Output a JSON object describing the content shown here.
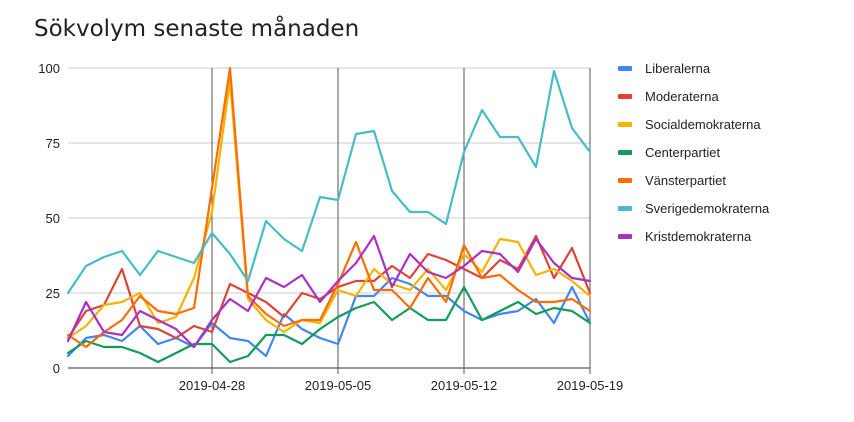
{
  "chart_data": {
    "type": "line",
    "title": "Sökvolym senaste månaden",
    "xlabel": "",
    "ylabel": "",
    "ylim": [
      0,
      100
    ],
    "yticks": [
      0,
      25,
      50,
      75,
      100
    ],
    "x": [
      "2019-04-20",
      "2019-04-21",
      "2019-04-22",
      "2019-04-23",
      "2019-04-24",
      "2019-04-25",
      "2019-04-26",
      "2019-04-27",
      "2019-04-28",
      "2019-04-29",
      "2019-04-30",
      "2019-05-01",
      "2019-05-02",
      "2019-05-03",
      "2019-05-04",
      "2019-05-05",
      "2019-05-06",
      "2019-05-07",
      "2019-05-08",
      "2019-05-09",
      "2019-05-10",
      "2019-05-11",
      "2019-05-12",
      "2019-05-13",
      "2019-05-14",
      "2019-05-15",
      "2019-05-16",
      "2019-05-17",
      "2019-05-18",
      "2019-05-19"
    ],
    "xticks": [
      "2019-04-28",
      "2019-05-05",
      "2019-05-12",
      "2019-05-19"
    ],
    "grid": true,
    "legend_position": "right",
    "series": [
      {
        "name": "Liberalerna",
        "color": "#4285F4",
        "values": [
          4,
          10,
          11,
          9,
          14,
          8,
          10,
          7,
          15,
          10,
          9,
          4,
          18,
          13,
          10,
          8,
          24,
          24,
          30,
          28,
          24,
          24,
          19,
          16,
          18,
          19,
          23,
          15,
          27,
          15
        ]
      },
      {
        "name": "Moderaterna",
        "color": "#DB4437",
        "values": [
          10,
          19,
          21,
          33,
          14,
          13,
          10,
          14,
          12,
          28,
          25,
          22,
          17,
          25,
          23,
          27,
          29,
          29,
          34,
          30,
          38,
          36,
          33,
          30,
          36,
          33,
          44,
          30,
          40,
          25
        ]
      },
      {
        "name": "Socialdemokraterna",
        "color": "#F4B400",
        "values": [
          10,
          14,
          21,
          22,
          25,
          15,
          17,
          30,
          52,
          96,
          23,
          16,
          12,
          16,
          15,
          26,
          24,
          33,
          28,
          26,
          33,
          26,
          38,
          32,
          43,
          42,
          31,
          33,
          29,
          24
        ]
      },
      {
        "name": "Centerpartiet",
        "color": "#0F9D58",
        "values": [
          5,
          9,
          7,
          7,
          5,
          2,
          5,
          8,
          8,
          2,
          4,
          11,
          11,
          8,
          13,
          17,
          20,
          22,
          16,
          20,
          16,
          16,
          27,
          16,
          19,
          22,
          18,
          20,
          19,
          15
        ]
      },
      {
        "name": "Vänsterpartiet",
        "color": "#FF6D00",
        "values": [
          11,
          7,
          12,
          16,
          24,
          19,
          18,
          20,
          60,
          100,
          24,
          18,
          14,
          16,
          16,
          28,
          42,
          26,
          26,
          20,
          30,
          22,
          41,
          30,
          31,
          26,
          22,
          22,
          23,
          19
        ]
      },
      {
        "name": "Sverigedemokraterna",
        "color": "#46BDC6",
        "values": [
          25,
          34,
          37,
          39,
          31,
          39,
          37,
          35,
          45,
          38,
          29,
          49,
          43,
          39,
          57,
          56,
          78,
          79,
          59,
          52,
          52,
          48,
          72,
          86,
          77,
          77,
          67,
          99,
          80,
          72
        ]
      },
      {
        "name": "Kristdemokraterna",
        "color": "#AB30C4",
        "values": [
          9,
          22,
          12,
          11,
          19,
          16,
          13,
          7,
          16,
          23,
          19,
          30,
          27,
          31,
          22,
          29,
          35,
          44,
          27,
          38,
          32,
          30,
          34,
          39,
          38,
          32,
          43,
          35,
          30,
          29
        ]
      }
    ]
  }
}
